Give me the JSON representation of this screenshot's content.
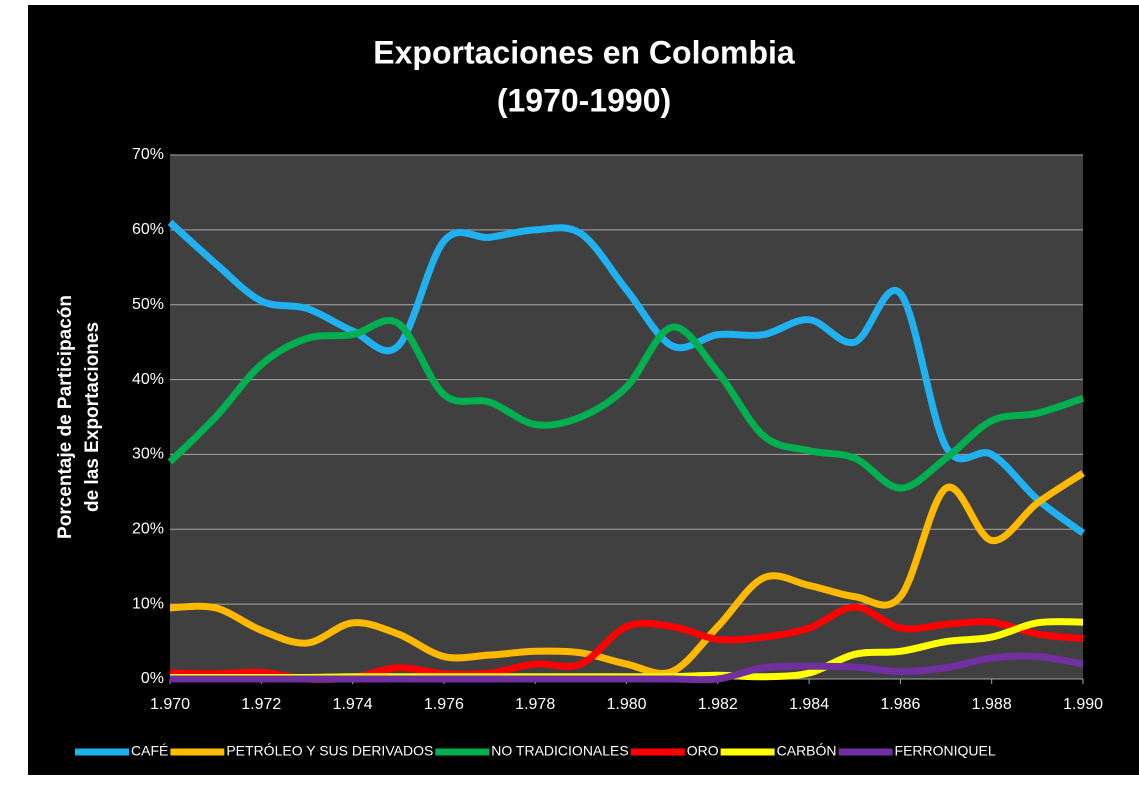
{
  "chart_data": {
    "type": "line",
    "title": [
      "Exportaciones en Colombia",
      "(1970-1990)"
    ],
    "ylabel": [
      "Porcentaje de Participacón",
      "de las Exportaciones"
    ],
    "x": [
      1970,
      1971,
      1972,
      1973,
      1974,
      1975,
      1976,
      1977,
      1978,
      1979,
      1980,
      1981,
      1982,
      1983,
      1984,
      1985,
      1986,
      1987,
      1988,
      1989,
      1990
    ],
    "xlim": [
      1970,
      1990
    ],
    "xticks": [
      {
        "value": 1970,
        "label": "1.970"
      },
      {
        "value": 1972,
        "label": "1.972"
      },
      {
        "value": 1974,
        "label": "1.974"
      },
      {
        "value": 1976,
        "label": "1.976"
      },
      {
        "value": 1978,
        "label": "1.978"
      },
      {
        "value": 1980,
        "label": "1.980"
      },
      {
        "value": 1982,
        "label": "1.982"
      },
      {
        "value": 1984,
        "label": "1.984"
      },
      {
        "value": 1986,
        "label": "1.986"
      },
      {
        "value": 1988,
        "label": "1.988"
      },
      {
        "value": 1990,
        "label": "1.990"
      }
    ],
    "ylim": [
      0,
      70
    ],
    "yticks": [
      {
        "value": 0,
        "label": "0%"
      },
      {
        "value": 10,
        "label": "10%"
      },
      {
        "value": 20,
        "label": "20%"
      },
      {
        "value": 30,
        "label": "30%"
      },
      {
        "value": 40,
        "label": "40%"
      },
      {
        "value": 50,
        "label": "50%"
      },
      {
        "value": 60,
        "label": "60%"
      },
      {
        "value": 70,
        "label": "70%"
      }
    ],
    "grid": true,
    "legend": "bottom",
    "series": [
      {
        "name": "CAFÉ",
        "color": "#1fb1f0",
        "values": [
          61,
          55.5,
          50.5,
          49.5,
          46.5,
          44.5,
          58.5,
          59,
          60,
          59.5,
          52,
          44.5,
          46,
          46,
          48,
          45,
          51.5,
          31,
          30,
          24,
          19.5
        ]
      },
      {
        "name": "PETRÓLEO Y SUS DERIVADOS",
        "color": "#ffb900",
        "values": [
          9.5,
          9.5,
          6.5,
          4.8,
          7.5,
          6,
          3,
          3.2,
          3.7,
          3.5,
          2,
          1,
          7,
          13.5,
          12.5,
          11,
          11,
          25.5,
          18.5,
          23.5,
          27.5
        ]
      },
      {
        "name": "NO TRADICIONALES",
        "color": "#00b050",
        "values": [
          29,
          35,
          42,
          45.5,
          46,
          47.5,
          38,
          37,
          34,
          35,
          39,
          47,
          41,
          32.5,
          30.5,
          29.5,
          25.5,
          29.5,
          34.5,
          35.5,
          37.5
        ]
      },
      {
        "name": "ORO",
        "color": "#ff0000",
        "values": [
          0.8,
          0.7,
          0.9,
          0,
          0.2,
          1.5,
          0.7,
          0.8,
          2,
          2,
          7,
          7,
          5.3,
          5.6,
          6.8,
          9.6,
          6.8,
          7.3,
          7.6,
          6,
          5.4
        ]
      },
      {
        "name": "CARBÓN",
        "color": "#ffff00",
        "values": [
          0.2,
          0.2,
          0.2,
          0.2,
          0.3,
          0.3,
          0.3,
          0.3,
          0.3,
          0.3,
          0.3,
          0.3,
          0.5,
          0.3,
          0.8,
          3.3,
          3.7,
          5,
          5.6,
          7.5,
          7.6
        ]
      },
      {
        "name": "FERRONIQUEL",
        "color": "#7030a0",
        "values": [
          0,
          0,
          0,
          0,
          0,
          0,
          0,
          0,
          0,
          0,
          0,
          0,
          0,
          1.5,
          1.7,
          1.6,
          1,
          1.5,
          2.8,
          3,
          2
        ]
      }
    ]
  }
}
